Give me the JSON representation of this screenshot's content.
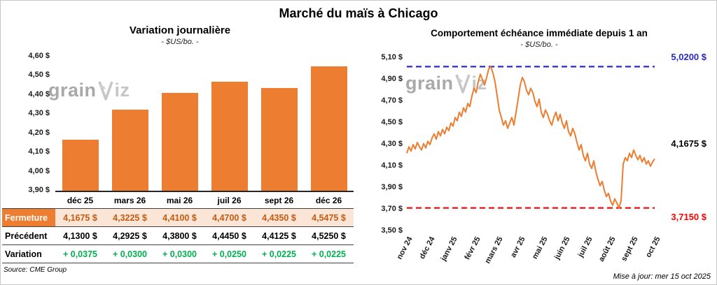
{
  "title": "Marché du maïs à Chicago",
  "source": "Source: CME Group",
  "updated": "Mise à jour: mer 15 oct 2025",
  "watermark": {
    "part1": "grain",
    "part2": "iz"
  },
  "colors": {
    "bar": "#ED7D31",
    "line": "#ED7D31",
    "max_line": "#2A2AC4",
    "min_line": "#FF0000",
    "close_row_bg": "#FBE5D6",
    "close_row_text": "#C55A11",
    "close_label_bg": "#ED7D31",
    "variation_green": "#00B050"
  },
  "table": {
    "rows": [
      {
        "label": "Fermeture",
        "style": "close",
        "values": [
          "4,1675 $",
          "4,3225 $",
          "4,4100 $",
          "4,4700 $",
          "4,4350 $",
          "4,5475 $"
        ]
      },
      {
        "label": "Précédent",
        "style": "prev",
        "values": [
          "4,1300 $",
          "4,2925 $",
          "4,3800 $",
          "4,4450 $",
          "4,4125 $",
          "4,5250 $"
        ]
      },
      {
        "label": "Variation",
        "style": "var",
        "values": [
          "+ 0,0375",
          "+ 0,0300",
          "+ 0,0300",
          "+ 0,0250",
          "+ 0,0225",
          "+ 0,0225"
        ]
      }
    ]
  },
  "chart_data": [
    {
      "type": "bar",
      "title": "Variation journalière",
      "subtitle": "- $US/bo. -",
      "categories": [
        "déc 25",
        "mars 26",
        "mai 26",
        "juil 26",
        "sept 26",
        "déc 26"
      ],
      "values": [
        4.1675,
        4.3225,
        4.41,
        4.47,
        4.435,
        4.5475
      ],
      "ylim": [
        3.9,
        4.6
      ],
      "y_ticks": [
        {
          "value": 4.6,
          "label": "4,60 $"
        },
        {
          "value": 4.5,
          "label": "4,50 $"
        },
        {
          "value": 4.4,
          "label": "4,40 $"
        },
        {
          "value": 4.3,
          "label": "4,30 $"
        },
        {
          "value": 4.2,
          "label": "4,20 $"
        },
        {
          "value": 4.1,
          "label": "4,10 $"
        },
        {
          "value": 4.0,
          "label": "4,00 $"
        },
        {
          "value": 3.9,
          "label": "3,90 $"
        }
      ]
    },
    {
      "type": "line",
      "title": "Comportement échéance immédiate depuis 1 an",
      "subtitle": "- $US/bo. -",
      "x_labels": [
        "nov 24",
        "déc 24",
        "janv 25",
        "févr 25",
        "mars 25",
        "avr 25",
        "mai 25",
        "juin 25",
        "juil 25",
        "août 25",
        "sept 25",
        "oct 25"
      ],
      "values": [
        4.22,
        4.28,
        4.24,
        4.3,
        4.26,
        4.32,
        4.28,
        4.25,
        4.31,
        4.27,
        4.33,
        4.3,
        4.36,
        4.4,
        4.35,
        4.42,
        4.38,
        4.44,
        4.4,
        4.46,
        4.43,
        4.5,
        4.47,
        4.55,
        4.52,
        4.6,
        4.56,
        4.64,
        4.6,
        4.68,
        4.65,
        4.75,
        4.82,
        4.78,
        4.88,
        4.95,
        4.9,
        4.85,
        4.92,
        5.0,
        5.02,
        4.96,
        4.88,
        4.75,
        4.62,
        4.55,
        4.48,
        4.52,
        4.45,
        4.5,
        4.55,
        4.48,
        4.6,
        4.72,
        4.85,
        4.92,
        4.88,
        4.8,
        4.76,
        4.82,
        4.78,
        4.7,
        4.65,
        4.72,
        4.6,
        4.55,
        4.62,
        4.58,
        4.52,
        4.48,
        4.55,
        4.6,
        4.52,
        4.58,
        4.5,
        4.45,
        4.52,
        4.42,
        4.38,
        4.45,
        4.4,
        4.32,
        4.25,
        4.3,
        4.2,
        4.15,
        4.22,
        4.12,
        4.08,
        4.15,
        4.05,
        3.98,
        3.92,
        3.96,
        3.88,
        3.82,
        3.85,
        3.78,
        3.74,
        3.8,
        3.76,
        3.715,
        3.78,
        4.12,
        4.18,
        4.15,
        4.22,
        4.18,
        4.25,
        4.2,
        4.16,
        4.2,
        4.14,
        4.18,
        4.12,
        4.15,
        4.1,
        4.14,
        4.1675
      ],
      "ylim": [
        3.5,
        5.1
      ],
      "y_ticks": [
        {
          "value": 5.1,
          "label": "5,10 $"
        },
        {
          "value": 4.9,
          "label": "4,90 $"
        },
        {
          "value": 4.7,
          "label": "4,70 $"
        },
        {
          "value": 4.5,
          "label": "4,50 $"
        },
        {
          "value": 4.3,
          "label": "4,30 $"
        },
        {
          "value": 4.1,
          "label": "4,10 $"
        },
        {
          "value": 3.9,
          "label": "3,90 $"
        },
        {
          "value": 3.7,
          "label": "3,70 $"
        },
        {
          "value": 3.5,
          "label": "3,50 $"
        }
      ],
      "max_line": {
        "value": 5.02,
        "label": "5,0200 $"
      },
      "min_line": {
        "value": 3.715,
        "label": "3,7150 $"
      },
      "last_point": {
        "value": 4.1675,
        "label": "4,1675 $"
      }
    }
  ]
}
